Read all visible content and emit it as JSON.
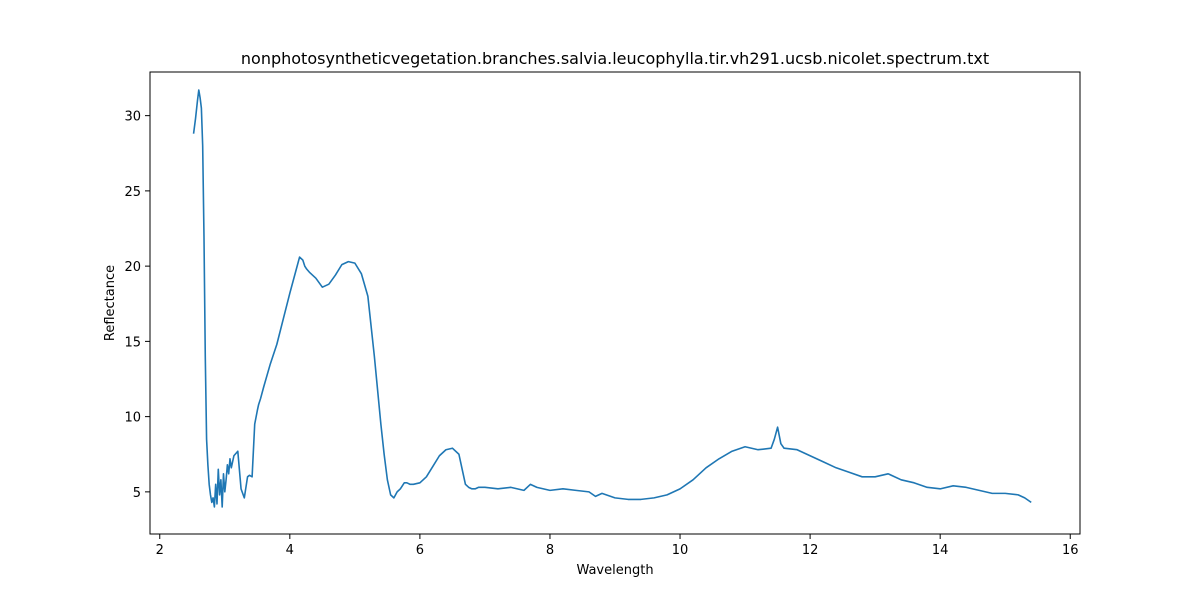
{
  "chart_data": {
    "type": "line",
    "title": "nonphotosyntheticvegetation.branches.salvia.leucophylla.tir.vh291.ucsb.nicolet.spectrum.txt",
    "xlabel": "Wavelength",
    "ylabel": "Reflectance",
    "xlim": [
      1.85,
      16.15
    ],
    "ylim": [
      2.2,
      32.9
    ],
    "xticks": [
      2,
      4,
      6,
      8,
      10,
      12,
      14,
      16
    ],
    "yticks": [
      5,
      10,
      15,
      20,
      25,
      30
    ],
    "grid": false,
    "series": [
      {
        "color": "#1f77b4",
        "x": [
          2.52,
          2.55,
          2.58,
          2.6,
          2.62,
          2.64,
          2.66,
          2.68,
          2.7,
          2.72,
          2.74,
          2.76,
          2.78,
          2.8,
          2.82,
          2.84,
          2.86,
          2.88,
          2.9,
          2.92,
          2.94,
          2.96,
          2.98,
          3.0,
          3.02,
          3.04,
          3.06,
          3.08,
          3.1,
          3.12,
          3.14,
          3.16,
          3.2,
          3.25,
          3.3,
          3.35,
          3.38,
          3.42,
          3.46,
          3.5,
          3.52,
          3.55,
          3.6,
          3.7,
          3.8,
          3.9,
          4.0,
          4.1,
          4.15,
          4.2,
          4.23,
          4.26,
          4.3,
          4.4,
          4.5,
          4.6,
          4.7,
          4.8,
          4.9,
          5.0,
          5.1,
          5.2,
          5.3,
          5.4,
          5.45,
          5.5,
          5.55,
          5.6,
          5.65,
          5.7,
          5.73,
          5.76,
          5.8,
          5.85,
          5.9,
          6.0,
          6.1,
          6.2,
          6.3,
          6.4,
          6.5,
          6.6,
          6.65,
          6.7,
          6.75,
          6.8,
          6.85,
          6.9,
          7.0,
          7.2,
          7.4,
          7.6,
          7.7,
          7.8,
          8.0,
          8.2,
          8.4,
          8.6,
          8.7,
          8.8,
          9.0,
          9.2,
          9.4,
          9.6,
          9.8,
          10.0,
          10.2,
          10.4,
          10.6,
          10.8,
          11.0,
          11.2,
          11.4,
          11.45,
          11.5,
          11.55,
          11.6,
          11.8,
          12.0,
          12.2,
          12.4,
          12.6,
          12.8,
          13.0,
          13.2,
          13.4,
          13.6,
          13.8,
          14.0,
          14.2,
          14.4,
          14.6,
          14.8,
          15.0,
          15.2,
          15.3,
          15.4
        ],
        "values": [
          28.8,
          29.8,
          31.0,
          31.7,
          31.2,
          30.5,
          28.0,
          22.0,
          14.0,
          8.5,
          6.8,
          5.5,
          4.8,
          4.3,
          4.6,
          4.0,
          5.5,
          4.2,
          6.5,
          4.8,
          5.8,
          4.0,
          6.2,
          5.0,
          5.8,
          6.8,
          6.2,
          7.2,
          6.6,
          7.0,
          7.4,
          7.5,
          7.7,
          5.2,
          4.6,
          6.0,
          6.1,
          6.0,
          9.5,
          10.4,
          10.8,
          11.2,
          12.0,
          13.5,
          14.8,
          16.5,
          18.2,
          19.8,
          20.6,
          20.4,
          20.0,
          19.8,
          19.6,
          19.2,
          18.6,
          18.8,
          19.4,
          20.1,
          20.3,
          20.2,
          19.5,
          18.0,
          14.0,
          9.5,
          7.5,
          5.8,
          4.8,
          4.6,
          5.0,
          5.2,
          5.4,
          5.6,
          5.6,
          5.5,
          5.5,
          5.6,
          6.0,
          6.7,
          7.4,
          7.8,
          7.9,
          7.5,
          6.5,
          5.5,
          5.3,
          5.2,
          5.2,
          5.3,
          5.3,
          5.2,
          5.3,
          5.1,
          5.5,
          5.3,
          5.1,
          5.2,
          5.1,
          5.0,
          4.7,
          4.9,
          4.6,
          4.5,
          4.5,
          4.6,
          4.8,
          5.2,
          5.8,
          6.6,
          7.2,
          7.7,
          8.0,
          7.8,
          7.9,
          8.5,
          9.3,
          8.2,
          7.9,
          7.8,
          7.4,
          7.0,
          6.6,
          6.3,
          6.0,
          6.0,
          6.2,
          5.8,
          5.6,
          5.3,
          5.2,
          5.4,
          5.3,
          5.1,
          4.9,
          4.9,
          4.8,
          4.6,
          4.3
        ]
      }
    ]
  }
}
